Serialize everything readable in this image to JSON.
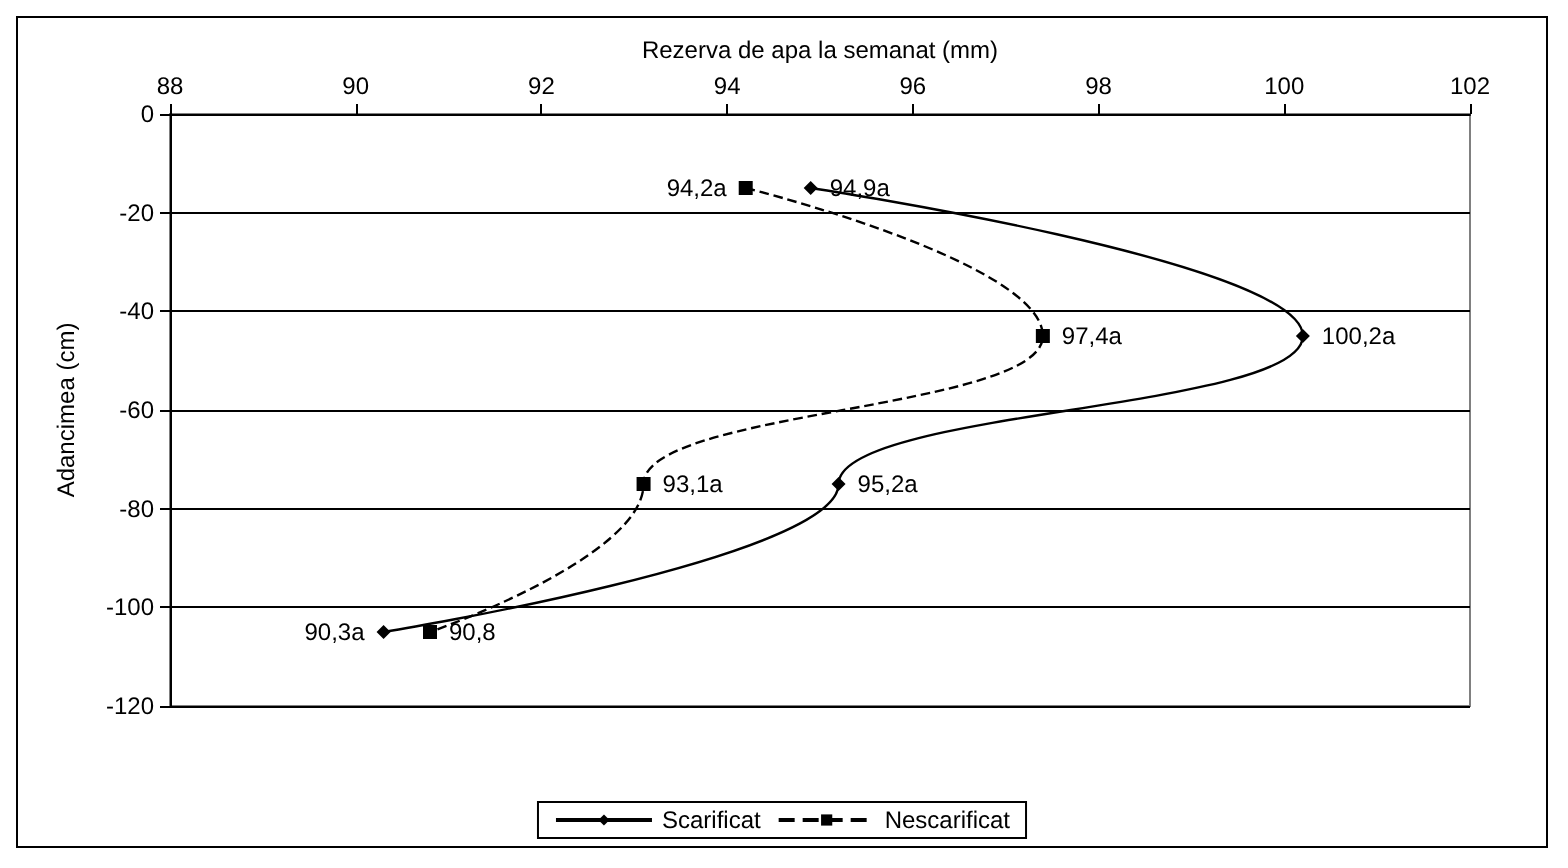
{
  "chart_data": {
    "type": "line",
    "orientation": "horizontal",
    "xlabel": "Rezerva de apa la semanat (mm)",
    "ylabel": "Adancimea (cm)",
    "xlim": [
      88,
      102
    ],
    "xticks": [
      88,
      90,
      92,
      94,
      96,
      98,
      100,
      102
    ],
    "ylim": [
      -120,
      0
    ],
    "yticks": [
      -120,
      -100,
      -80,
      -60,
      -40,
      -20,
      0
    ],
    "grid": "y",
    "legend": "bottom",
    "series": [
      {
        "name": "Scarificat",
        "color": "#000000",
        "marker": "diamond",
        "line_style": "solid",
        "x": [
          -15,
          -45,
          -75,
          -105
        ],
        "values": [
          94.9,
          100.2,
          95.2,
          90.3
        ],
        "value_labels": [
          "94,9a",
          "100,2a",
          "95,2a",
          "90,3a"
        ]
      },
      {
        "name": "Nescarificat",
        "color": "#000000",
        "marker": "square",
        "line_style": "dashed",
        "x": [
          -15,
          -45,
          -75,
          -105
        ],
        "values": [
          94.2,
          97.4,
          93.1,
          90.8
        ],
        "value_labels": [
          "94,2a",
          "97,4a",
          "93,1a",
          "90,8"
        ]
      }
    ]
  }
}
